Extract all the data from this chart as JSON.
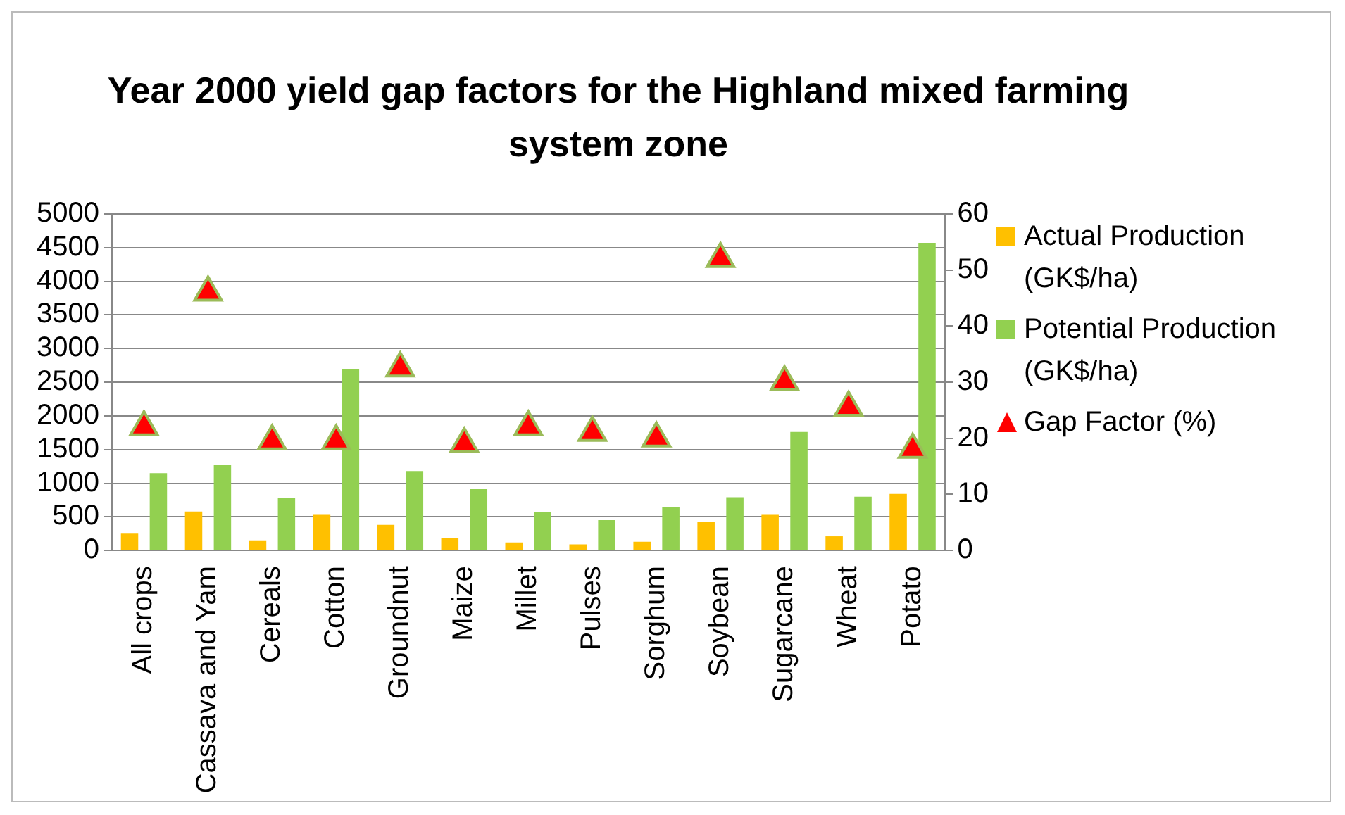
{
  "chart_data": {
    "type": "bar",
    "title": "Year 2000 yield gap factors for the Highland mixed farming system zone",
    "categories": [
      "All crops",
      "Cassava and Yam",
      "Cereals",
      "Cotton",
      "Groundnut",
      "Maize",
      "Millet",
      "Pulses",
      "Sorghum",
      "Soybean",
      "Sugarcane",
      "Wheat",
      "Potato"
    ],
    "series": [
      {
        "name": "Actual Production (GK$/ha)",
        "color": "#ffc000",
        "values": [
          250,
          580,
          150,
          530,
          380,
          180,
          120,
          90,
          130,
          420,
          530,
          210,
          840
        ]
      },
      {
        "name": "Potential Production (GK$/ha)",
        "color": "#92d050",
        "values": [
          1150,
          1270,
          780,
          2690,
          1180,
          910,
          570,
          450,
          650,
          790,
          1760,
          800,
          4570
        ]
      },
      {
        "name": "Gap Factor (%)",
        "type": "scatter",
        "axis": "y2",
        "marker": "triangle",
        "color": "#ff0000",
        "values": [
          22,
          46,
          19.5,
          19.5,
          32.5,
          19,
          22,
          21,
          20,
          52,
          30,
          25.5,
          18
        ]
      }
    ],
    "ylim": [
      0,
      5000
    ],
    "yticks": [
      0,
      500,
      1000,
      1500,
      2000,
      2500,
      3000,
      3500,
      4000,
      4500,
      5000
    ],
    "y2lim": [
      0,
      60
    ],
    "y2ticks": [
      0,
      10,
      20,
      30,
      40,
      50,
      60
    ],
    "grid": "y",
    "legend": "right"
  }
}
